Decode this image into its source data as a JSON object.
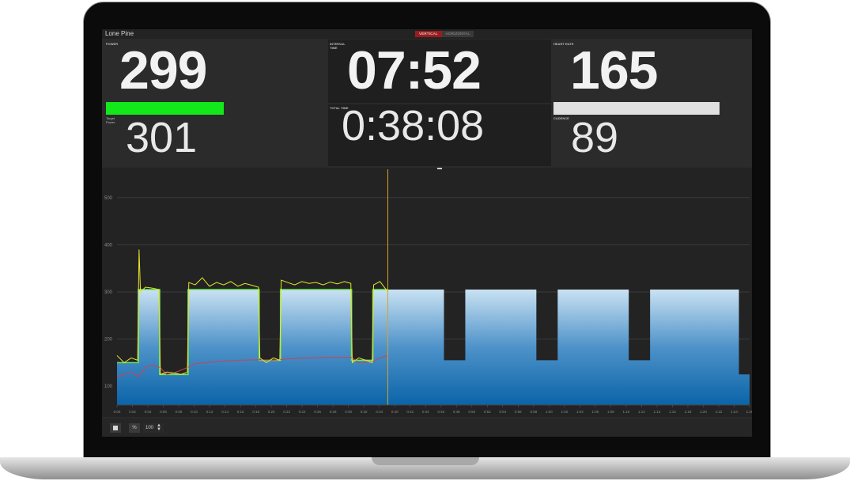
{
  "app": {
    "title": "Lone Pine"
  },
  "mode_toggle": {
    "vertical": "VERTICAL",
    "horizontal": "HORIZONTAL"
  },
  "metrics": {
    "power": {
      "label": "POWER",
      "value": "299",
      "bar_fraction": 0.99,
      "bar_color": "#13e81a"
    },
    "target_power": {
      "label": "Target Power",
      "value": "301"
    },
    "interval_time": {
      "label": "INTERVAL TIME",
      "value": "07:52"
    },
    "total_time": {
      "label": "TOTAL TIME",
      "value": "0:38:08"
    },
    "heart_rate": {
      "label": "HEART RATE",
      "value": "165",
      "bar_fraction": 1.0,
      "bar_color": "#e0e0e0"
    },
    "cadence": {
      "label": "CADENCE",
      "value": "89"
    }
  },
  "chart_data": {
    "type": "area",
    "yticks": [
      100,
      200,
      300,
      400,
      500
    ],
    "ylim": [
      60,
      550
    ],
    "xticks": [
      "0:00",
      "0:02",
      "0:04",
      "0:06",
      "0:08",
      "0:10",
      "0:12",
      "0:14",
      "0:16",
      "0:18",
      "0:20",
      "0:22",
      "0:24",
      "0:26",
      "0:28",
      "0:30",
      "0:32",
      "0:34",
      "0:40",
      "0:42",
      "0:44",
      "0:46",
      "0:48",
      "0:50",
      "0:52",
      "0:54",
      "0:56",
      "0:58",
      "1:00",
      "1:02",
      "1:04",
      "1:06",
      "1:08",
      "1:10",
      "1:12",
      "1:14",
      "1:16",
      "1:18",
      "1:20",
      "1:22",
      "1:24",
      "1:26"
    ],
    "xlim": [
      0,
      89
    ],
    "progress_minutes": 38.1,
    "workout_segments": [
      {
        "start": 0,
        "end": 3,
        "watts": 150
      },
      {
        "start": 3,
        "end": 6,
        "watts": 305
      },
      {
        "start": 6,
        "end": 10,
        "watts": 125
      },
      {
        "start": 10,
        "end": 20,
        "watts": 305
      },
      {
        "start": 20,
        "end": 23,
        "watts": 155
      },
      {
        "start": 23,
        "end": 33,
        "watts": 305
      },
      {
        "start": 33,
        "end": 36,
        "watts": 155
      },
      {
        "start": 36,
        "end": 46,
        "watts": 305
      },
      {
        "start": 46,
        "end": 49,
        "watts": 155
      },
      {
        "start": 49,
        "end": 59,
        "watts": 305
      },
      {
        "start": 59,
        "end": 62,
        "watts": 155
      },
      {
        "start": 62,
        "end": 72,
        "watts": 305
      },
      {
        "start": 72,
        "end": 75,
        "watts": 155
      },
      {
        "start": 75,
        "end": 87.5,
        "watts": 305
      },
      {
        "start": 87.5,
        "end": 89,
        "watts": 125
      }
    ],
    "power_trace": [
      [
        0,
        165
      ],
      [
        1,
        150
      ],
      [
        2,
        160
      ],
      [
        2.9,
        155
      ],
      [
        3.1,
        390
      ],
      [
        3.3,
        300
      ],
      [
        4,
        310
      ],
      [
        5,
        308
      ],
      [
        5.9,
        305
      ],
      [
        6.1,
        125
      ],
      [
        7,
        130
      ],
      [
        8,
        128
      ],
      [
        9,
        125
      ],
      [
        9.9,
        130
      ],
      [
        10.1,
        320
      ],
      [
        11,
        315
      ],
      [
        12,
        330
      ],
      [
        13,
        312
      ],
      [
        14,
        320
      ],
      [
        15,
        315
      ],
      [
        16,
        322
      ],
      [
        17,
        312
      ],
      [
        18,
        318
      ],
      [
        19,
        314
      ],
      [
        19.9,
        310
      ],
      [
        20.1,
        160
      ],
      [
        21,
        150
      ],
      [
        22,
        160
      ],
      [
        22.9,
        155
      ],
      [
        23.1,
        325
      ],
      [
        24,
        320
      ],
      [
        25,
        315
      ],
      [
        26,
        322
      ],
      [
        27,
        318
      ],
      [
        28,
        320
      ],
      [
        29,
        315
      ],
      [
        30,
        321
      ],
      [
        31,
        317
      ],
      [
        32,
        322
      ],
      [
        32.9,
        318
      ],
      [
        33.1,
        150
      ],
      [
        34,
        160
      ],
      [
        35,
        155
      ],
      [
        35.9,
        150
      ],
      [
        36.1,
        315
      ],
      [
        37,
        322
      ],
      [
        38.1,
        300
      ]
    ],
    "heart_rate_trace": [
      [
        0,
        120
      ],
      [
        2,
        130
      ],
      [
        3,
        120
      ],
      [
        4,
        140
      ],
      [
        5,
        145
      ],
      [
        6,
        140
      ],
      [
        7,
        125
      ],
      [
        8,
        128
      ],
      [
        10,
        140
      ],
      [
        11,
        148
      ],
      [
        14,
        152
      ],
      [
        17,
        155
      ],
      [
        20,
        156
      ],
      [
        22,
        155
      ],
      [
        24,
        158
      ],
      [
        27,
        160
      ],
      [
        30,
        161
      ],
      [
        33,
        161
      ],
      [
        34,
        150
      ],
      [
        36,
        152
      ],
      [
        37,
        160
      ],
      [
        38.1,
        165
      ]
    ],
    "colors": {
      "power": "#e8e628",
      "heart_rate": "#d04050",
      "target": "#6ee85a",
      "progress": "#d7a321"
    }
  },
  "bottom_controls": {
    "zoom_percent": "100"
  }
}
